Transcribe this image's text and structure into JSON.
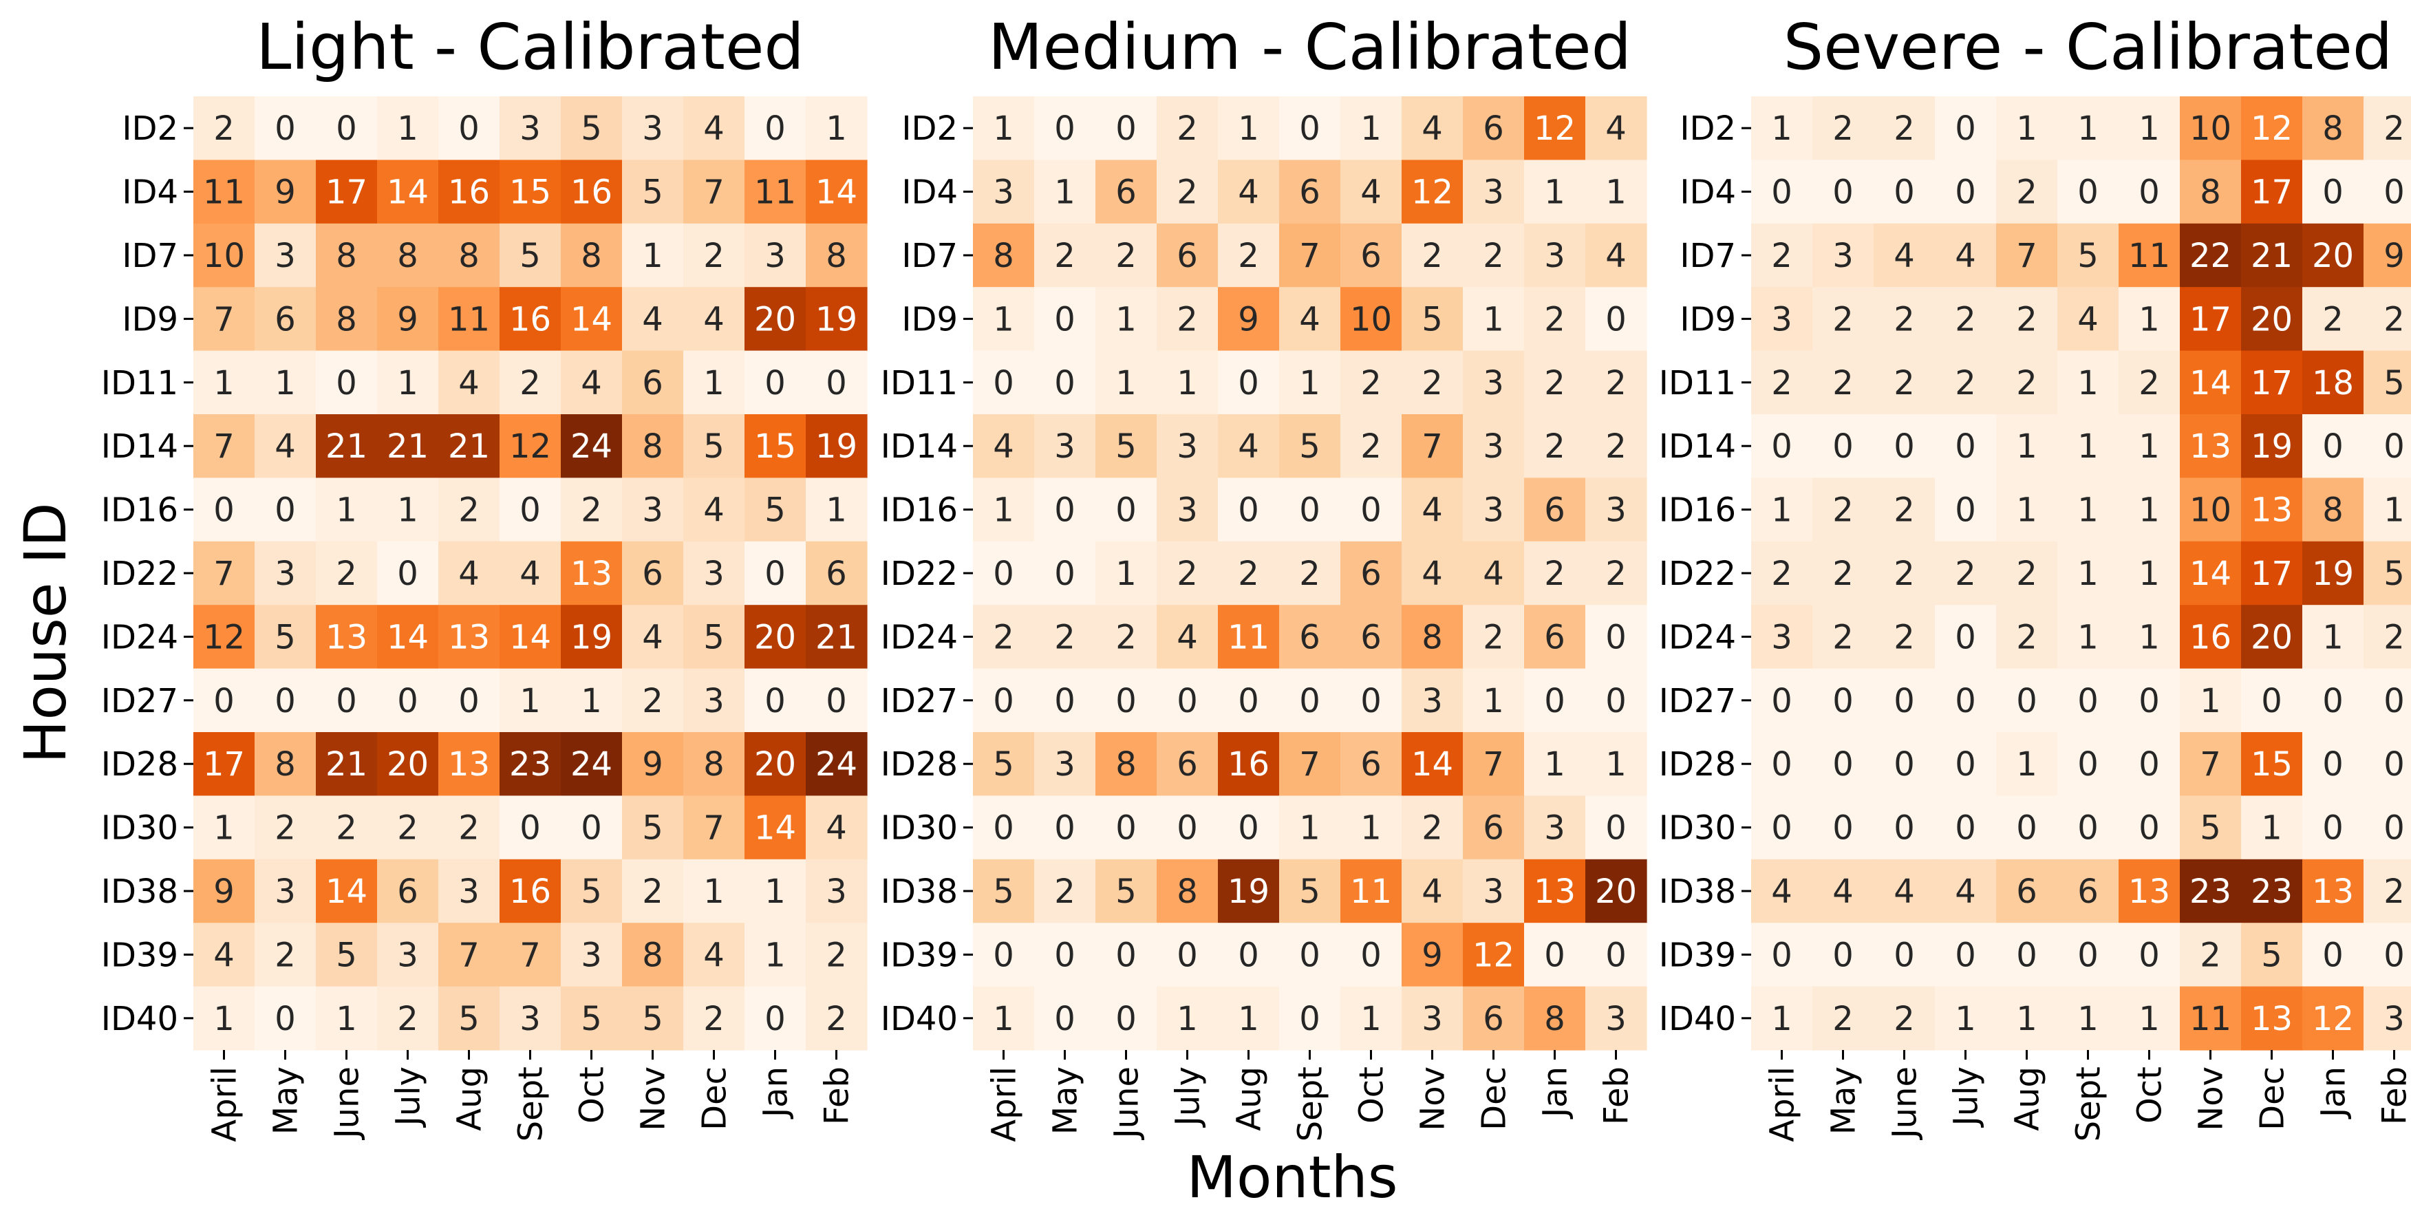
{
  "figure": {
    "xlabel": "Months",
    "ylabel": "House ID"
  },
  "chart_data": [
    {
      "type": "heatmap",
      "title": "Light - Calibrated",
      "rows": [
        "ID2",
        "ID4",
        "ID7",
        "ID9",
        "ID11",
        "ID14",
        "ID16",
        "ID22",
        "ID24",
        "ID27",
        "ID28",
        "ID30",
        "ID38",
        "ID39",
        "ID40"
      ],
      "columns": [
        "April",
        "May",
        "June",
        "July",
        "Aug",
        "Sept",
        "Oct",
        "Nov",
        "Dec",
        "Jan",
        "Feb"
      ],
      "values": [
        [
          2,
          0,
          0,
          1,
          0,
          3,
          5,
          3,
          4,
          0,
          1
        ],
        [
          11,
          9,
          17,
          14,
          16,
          15,
          16,
          5,
          7,
          11,
          14
        ],
        [
          10,
          3,
          8,
          8,
          8,
          5,
          8,
          1,
          2,
          3,
          8
        ],
        [
          7,
          6,
          8,
          9,
          11,
          16,
          14,
          4,
          4,
          20,
          19
        ],
        [
          1,
          1,
          0,
          1,
          4,
          2,
          4,
          6,
          1,
          0,
          0
        ],
        [
          7,
          4,
          21,
          21,
          21,
          12,
          24,
          8,
          5,
          15,
          19
        ],
        [
          0,
          0,
          1,
          1,
          2,
          0,
          2,
          3,
          4,
          5,
          1
        ],
        [
          7,
          3,
          2,
          0,
          4,
          4,
          13,
          6,
          3,
          0,
          6
        ],
        [
          12,
          5,
          13,
          14,
          13,
          14,
          19,
          4,
          5,
          20,
          21
        ],
        [
          0,
          0,
          0,
          0,
          0,
          1,
          1,
          2,
          3,
          0,
          0
        ],
        [
          17,
          8,
          21,
          20,
          13,
          23,
          24,
          9,
          8,
          20,
          24
        ],
        [
          1,
          2,
          2,
          2,
          2,
          0,
          0,
          5,
          7,
          14,
          4
        ],
        [
          9,
          3,
          14,
          6,
          3,
          16,
          5,
          2,
          1,
          1,
          3
        ],
        [
          4,
          2,
          5,
          3,
          7,
          7,
          3,
          8,
          4,
          1,
          2
        ],
        [
          1,
          0,
          1,
          2,
          5,
          3,
          5,
          5,
          2,
          0,
          2
        ]
      ]
    },
    {
      "type": "heatmap",
      "title": "Medium - Calibrated",
      "rows": [
        "ID2",
        "ID4",
        "ID7",
        "ID9",
        "ID11",
        "ID14",
        "ID16",
        "ID22",
        "ID24",
        "ID27",
        "ID28",
        "ID30",
        "ID38",
        "ID39",
        "ID40"
      ],
      "columns": [
        "April",
        "May",
        "June",
        "July",
        "Aug",
        "Sept",
        "Oct",
        "Nov",
        "Dec",
        "Jan",
        "Feb"
      ],
      "values": [
        [
          1,
          0,
          0,
          2,
          1,
          0,
          1,
          4,
          6,
          12,
          4
        ],
        [
          3,
          1,
          6,
          2,
          4,
          6,
          4,
          12,
          3,
          1,
          1
        ],
        [
          8,
          2,
          2,
          6,
          2,
          7,
          6,
          2,
          2,
          3,
          4
        ],
        [
          1,
          0,
          1,
          2,
          9,
          4,
          10,
          5,
          1,
          2,
          0
        ],
        [
          0,
          0,
          1,
          1,
          0,
          1,
          2,
          2,
          3,
          2,
          2
        ],
        [
          4,
          3,
          5,
          3,
          4,
          5,
          2,
          7,
          3,
          2,
          2
        ],
        [
          1,
          0,
          0,
          3,
          0,
          0,
          0,
          4,
          3,
          6,
          3
        ],
        [
          0,
          0,
          1,
          2,
          2,
          2,
          6,
          4,
          4,
          2,
          2
        ],
        [
          2,
          2,
          2,
          4,
          11,
          6,
          6,
          8,
          2,
          6,
          0
        ],
        [
          0,
          0,
          0,
          0,
          0,
          0,
          0,
          3,
          1,
          0,
          0
        ],
        [
          5,
          3,
          8,
          6,
          16,
          7,
          6,
          14,
          7,
          1,
          1
        ],
        [
          0,
          0,
          0,
          0,
          0,
          1,
          1,
          2,
          6,
          3,
          0
        ],
        [
          5,
          2,
          5,
          8,
          19,
          5,
          11,
          4,
          3,
          13,
          20
        ],
        [
          0,
          0,
          0,
          0,
          0,
          0,
          0,
          9,
          12,
          0,
          0
        ],
        [
          1,
          0,
          0,
          1,
          1,
          0,
          1,
          3,
          6,
          8,
          3
        ]
      ]
    },
    {
      "type": "heatmap",
      "title": "Severe - Calibrated",
      "rows": [
        "ID2",
        "ID4",
        "ID7",
        "ID9",
        "ID11",
        "ID14",
        "ID16",
        "ID22",
        "ID24",
        "ID27",
        "ID28",
        "ID30",
        "ID38",
        "ID39",
        "ID40"
      ],
      "columns": [
        "April",
        "May",
        "June",
        "July",
        "Aug",
        "Sept",
        "Oct",
        "Nov",
        "Dec",
        "Jan",
        "Feb"
      ],
      "values": [
        [
          1,
          2,
          2,
          0,
          1,
          1,
          1,
          10,
          12,
          8,
          2
        ],
        [
          0,
          0,
          0,
          0,
          2,
          0,
          0,
          8,
          17,
          0,
          0
        ],
        [
          2,
          3,
          4,
          4,
          7,
          5,
          11,
          22,
          21,
          20,
          9
        ],
        [
          3,
          2,
          2,
          2,
          2,
          4,
          1,
          17,
          20,
          2,
          2
        ],
        [
          2,
          2,
          2,
          2,
          2,
          1,
          2,
          14,
          17,
          18,
          5
        ],
        [
          0,
          0,
          0,
          0,
          1,
          1,
          1,
          13,
          19,
          0,
          0
        ],
        [
          1,
          2,
          2,
          0,
          1,
          1,
          1,
          10,
          13,
          8,
          1
        ],
        [
          2,
          2,
          2,
          2,
          2,
          1,
          1,
          14,
          17,
          19,
          5
        ],
        [
          3,
          2,
          2,
          0,
          2,
          1,
          1,
          16,
          20,
          1,
          2
        ],
        [
          0,
          0,
          0,
          0,
          0,
          0,
          0,
          1,
          0,
          0,
          0
        ],
        [
          0,
          0,
          0,
          0,
          1,
          0,
          0,
          7,
          15,
          0,
          0
        ],
        [
          0,
          0,
          0,
          0,
          0,
          0,
          0,
          5,
          1,
          0,
          0
        ],
        [
          4,
          4,
          4,
          4,
          6,
          6,
          13,
          23,
          23,
          13,
          2
        ],
        [
          0,
          0,
          0,
          0,
          0,
          0,
          0,
          2,
          5,
          0,
          0
        ],
        [
          1,
          2,
          2,
          1,
          1,
          1,
          1,
          11,
          13,
          12,
          3
        ]
      ]
    }
  ],
  "colors": {
    "scale": [
      "#fff5eb",
      "#fee6ce",
      "#fdd0a2",
      "#fdae6b",
      "#fd8d3c",
      "#f16913",
      "#d94801",
      "#a63603",
      "#7f2704"
    ],
    "text_dark": "#262626",
    "text_light": "#ffffff"
  }
}
